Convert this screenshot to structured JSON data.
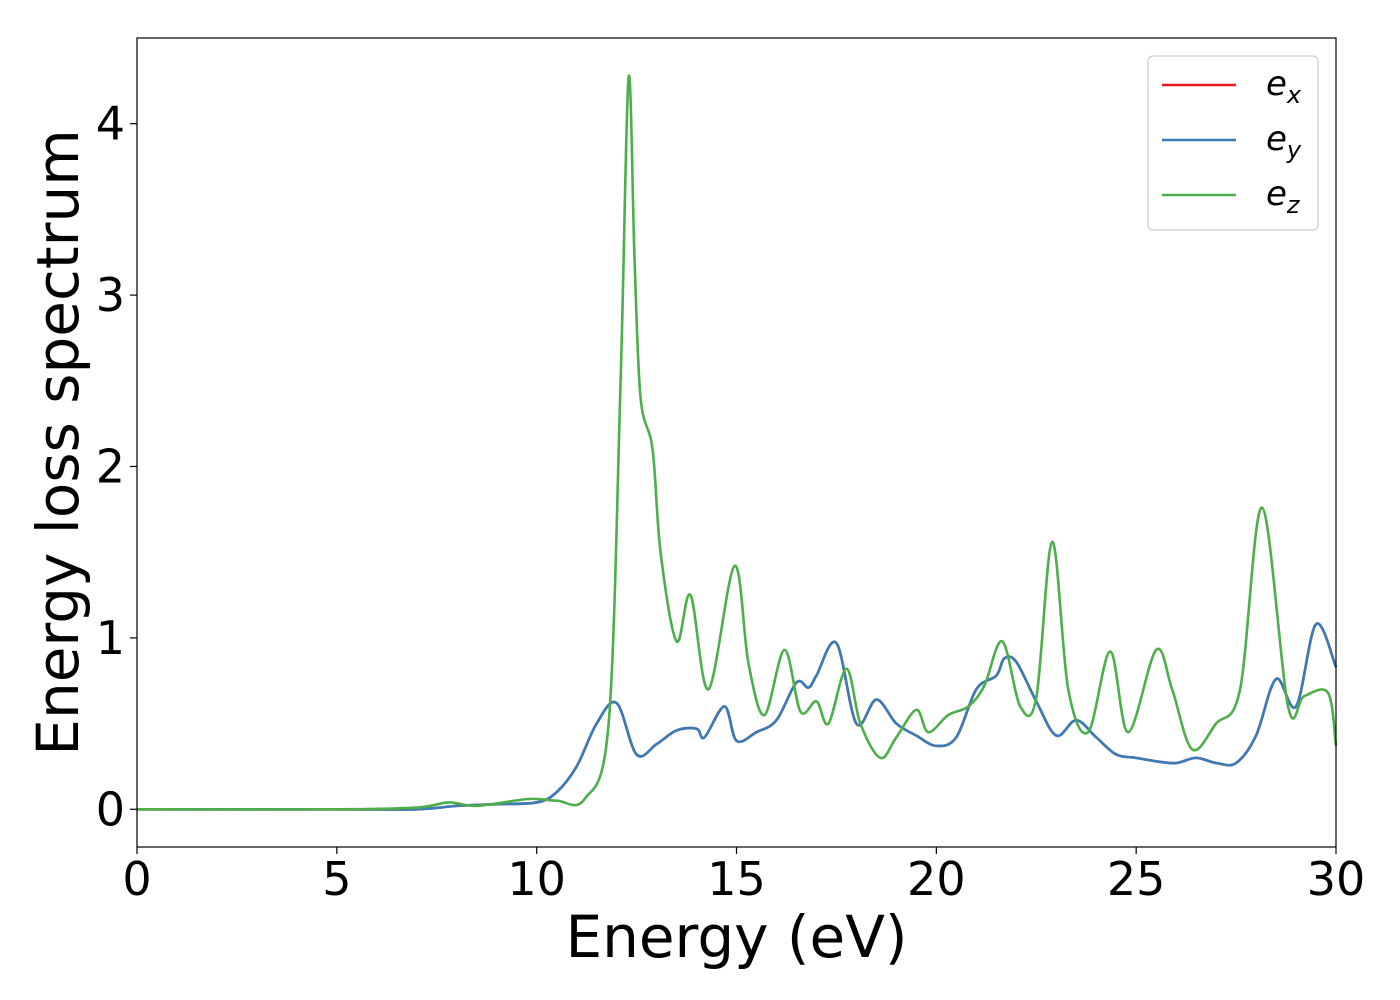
{
  "chart_data": {
    "type": "line",
    "title": "",
    "xlabel": "Energy (eV)",
    "ylabel": "Energy loss spectrum",
    "xlim": [
      0,
      30
    ],
    "ylim": [
      -0.22,
      4.5
    ],
    "xticks": [
      0,
      5,
      10,
      15,
      20,
      25,
      30
    ],
    "yticks": [
      0,
      1,
      2,
      3,
      4
    ],
    "grid": false,
    "legend_position": "top-right",
    "series": [
      {
        "name": "e",
        "subscript": "x",
        "color": "#e41a1c",
        "x": [
          0,
          5,
          7,
          8,
          9,
          10,
          10.5,
          11,
          11.5,
          12,
          12.5,
          13,
          13.5,
          14,
          14.2,
          14.7,
          15,
          15.5,
          16,
          16.5,
          16.8,
          17,
          17.5,
          18,
          18.5,
          19,
          19.5,
          20,
          20.5,
          21,
          21.5,
          21.7,
          22,
          22.5,
          23,
          23.5,
          24,
          24.5,
          25,
          25.5,
          26,
          26.5,
          27,
          27.5,
          28,
          28.5,
          29,
          29.5,
          30
        ],
        "y": [
          0,
          0,
          0,
          0.02,
          0.03,
          0.04,
          0.1,
          0.25,
          0.5,
          0.62,
          0.32,
          0.38,
          0.46,
          0.47,
          0.42,
          0.6,
          0.4,
          0.45,
          0.52,
          0.74,
          0.71,
          0.78,
          0.97,
          0.5,
          0.64,
          0.5,
          0.43,
          0.37,
          0.42,
          0.7,
          0.78,
          0.88,
          0.86,
          0.63,
          0.43,
          0.52,
          0.42,
          0.32,
          0.3,
          0.28,
          0.27,
          0.3,
          0.27,
          0.27,
          0.43,
          0.76,
          0.6,
          1.08,
          0.83
        ]
      },
      {
        "name": "e",
        "subscript": "y",
        "color": "#377eb8",
        "x": [
          0,
          5,
          7,
          8,
          9,
          10,
          10.5,
          11,
          11.5,
          12,
          12.5,
          13,
          13.5,
          14,
          14.2,
          14.7,
          15,
          15.5,
          16,
          16.5,
          16.8,
          17,
          17.5,
          18,
          18.5,
          19,
          19.5,
          20,
          20.5,
          21,
          21.5,
          21.7,
          22,
          22.5,
          23,
          23.5,
          24,
          24.5,
          25,
          25.5,
          26,
          26.5,
          27,
          27.5,
          28,
          28.5,
          29,
          29.5,
          30
        ],
        "y": [
          0,
          0,
          0,
          0.02,
          0.03,
          0.04,
          0.1,
          0.25,
          0.5,
          0.62,
          0.32,
          0.38,
          0.46,
          0.47,
          0.42,
          0.6,
          0.4,
          0.45,
          0.52,
          0.74,
          0.71,
          0.78,
          0.97,
          0.5,
          0.64,
          0.5,
          0.43,
          0.37,
          0.42,
          0.7,
          0.78,
          0.88,
          0.86,
          0.63,
          0.43,
          0.52,
          0.42,
          0.32,
          0.3,
          0.28,
          0.27,
          0.3,
          0.27,
          0.27,
          0.43,
          0.76,
          0.6,
          1.08,
          0.83
        ]
      },
      {
        "name": "e",
        "subscript": "z",
        "color": "#4daf4a",
        "x": [
          0,
          5,
          7,
          7.8,
          8.5,
          9.8,
          10.5,
          11.2,
          11.8,
          12.1,
          12.3,
          12.45,
          12.6,
          12.9,
          13.1,
          13.5,
          13.85,
          14.3,
          14.95,
          15.3,
          15.7,
          16.2,
          16.6,
          17,
          17.3,
          17.75,
          18.1,
          18.6,
          19,
          19.5,
          19.8,
          20.3,
          20.8,
          21.2,
          21.65,
          22.1,
          22.5,
          22.9,
          23.3,
          23.8,
          24.35,
          24.8,
          25.5,
          25.9,
          26.4,
          27,
          27.6,
          28.15,
          28.8,
          29.2,
          29.8,
          30
        ],
        "y": [
          0,
          0,
          0.01,
          0.04,
          0.02,
          0.06,
          0.05,
          0.06,
          0.5,
          2.5,
          4.27,
          3.2,
          2.4,
          2.1,
          1.5,
          0.98,
          1.25,
          0.7,
          1.42,
          0.85,
          0.55,
          0.93,
          0.57,
          0.63,
          0.5,
          0.82,
          0.5,
          0.3,
          0.42,
          0.58,
          0.45,
          0.55,
          0.6,
          0.72,
          0.98,
          0.6,
          0.65,
          1.56,
          0.7,
          0.45,
          0.92,
          0.45,
          0.93,
          0.7,
          0.35,
          0.5,
          0.7,
          1.76,
          0.6,
          0.66,
          0.68,
          0.37
        ]
      }
    ]
  }
}
